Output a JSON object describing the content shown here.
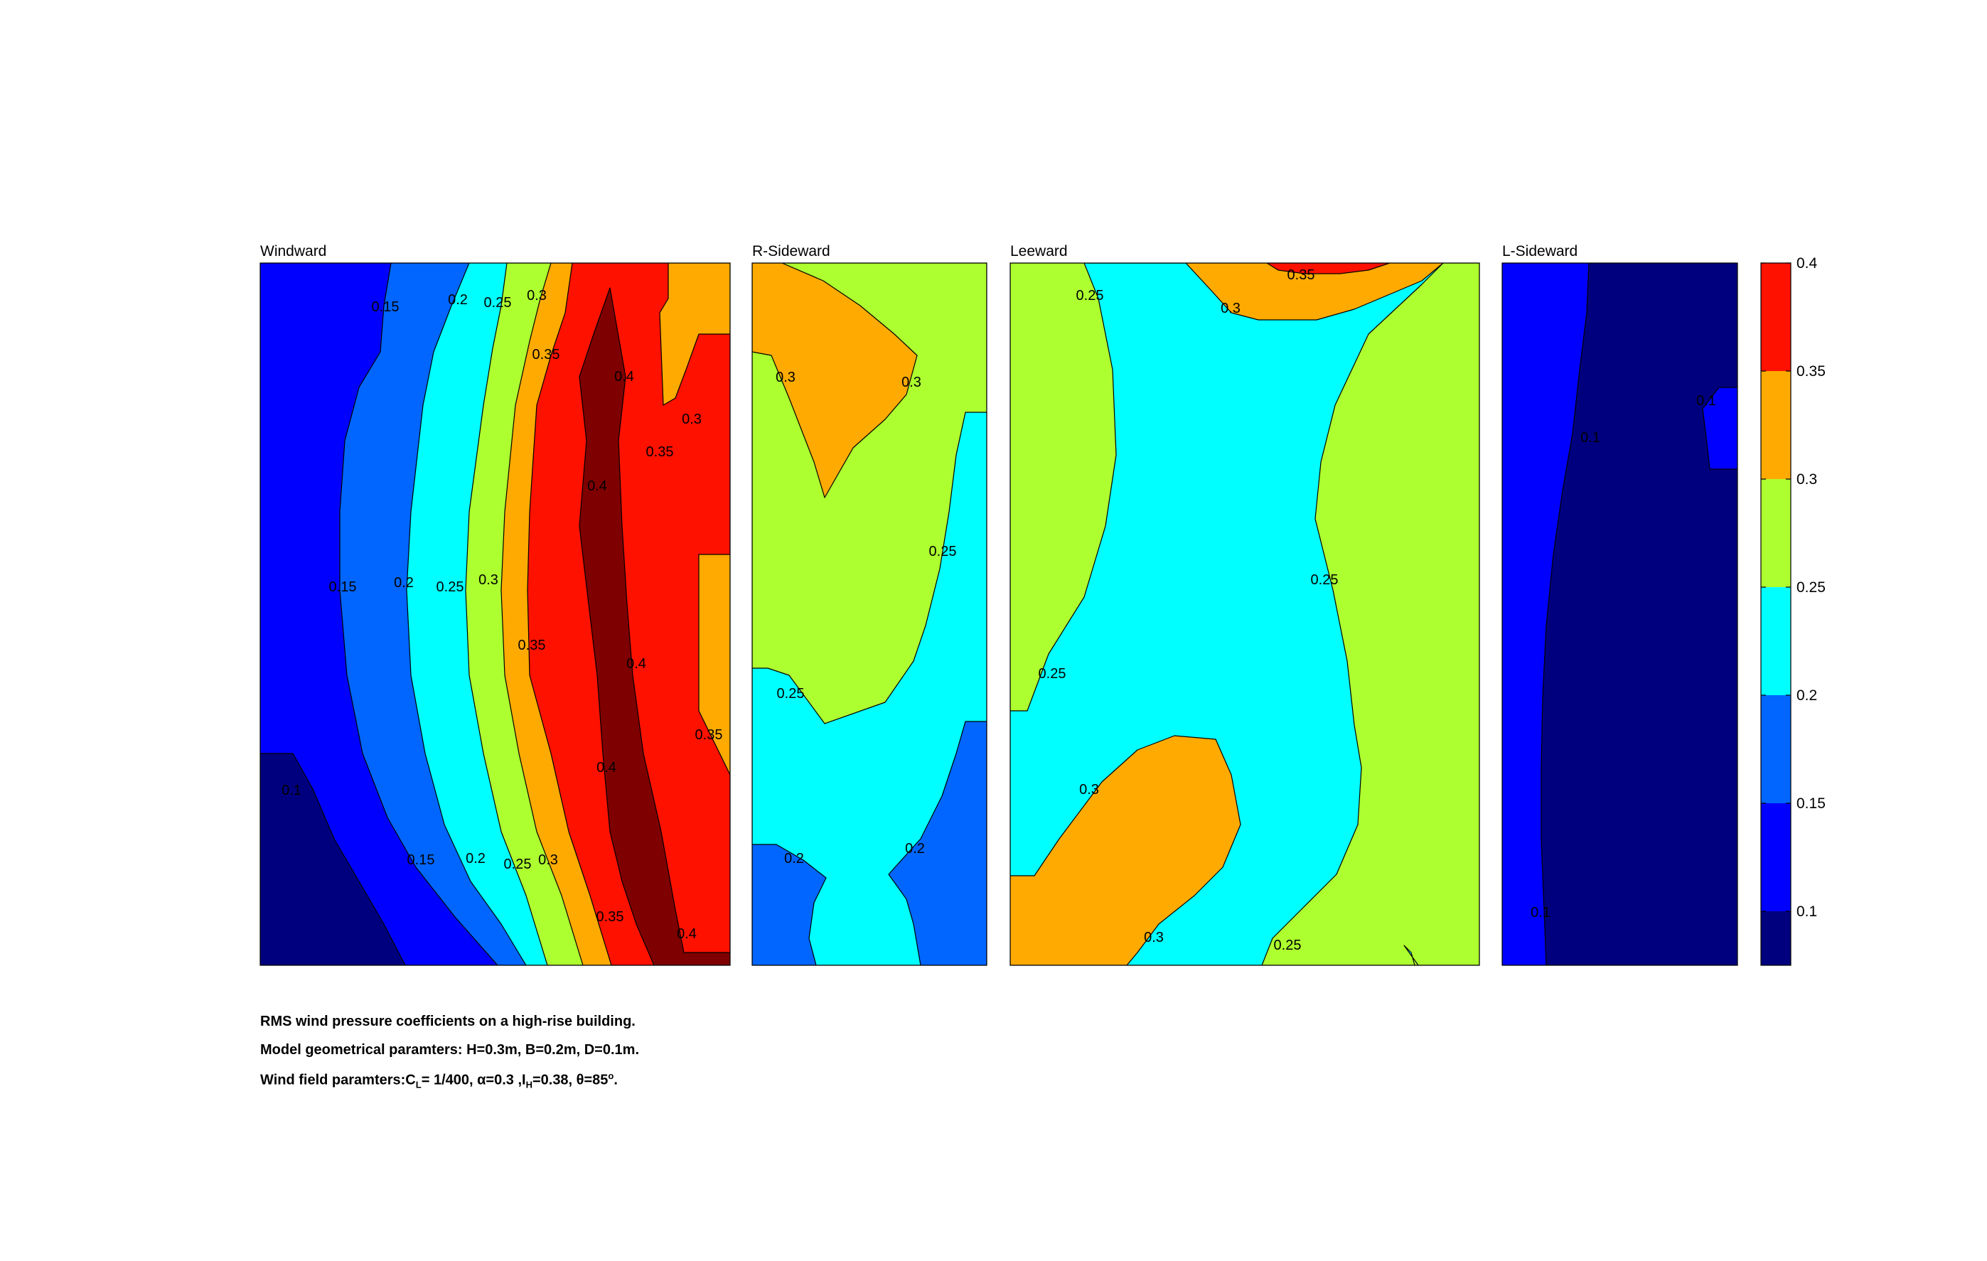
{
  "chart_data": {
    "type": "heatmap",
    "subtype": "filled-contour",
    "levels": [
      0.1,
      0.15,
      0.2,
      0.25,
      0.3,
      0.35,
      0.4
    ],
    "colormap": "jet",
    "band_colors": [
      "#00007f",
      "#0000ff",
      "#0066ff",
      "#00ffff",
      "#adff2f",
      "#ffaa00",
      "#ff1100",
      "#7f0000"
    ],
    "panels": [
      {
        "title": "Windward",
        "contour_labels": [
          "0.15",
          "0.2",
          "0.25",
          "0.3",
          "0.35",
          "0.4",
          "0.3",
          "0.35",
          "0.4",
          "0.15",
          "0.2",
          "0.25",
          "0.3",
          "0.35",
          "0.4",
          "0.35",
          "0.4",
          "0.1",
          "0.15",
          "0.2",
          "0.25",
          "0.3",
          "0.35",
          "0.4"
        ]
      },
      {
        "title": "R-Sideward",
        "contour_labels": [
          "0.3",
          "0.3",
          "0.25",
          "0.25",
          "0.2",
          "0.2"
        ]
      },
      {
        "title": "Leeward",
        "contour_labels": [
          "0.25",
          "0.3",
          "0.35",
          "0.25",
          "0.25",
          "0.3",
          "0.3",
          "0.25"
        ]
      },
      {
        "title": "L-Sideward",
        "contour_labels": [
          "0.1",
          "0.1",
          "0.1"
        ]
      }
    ],
    "colorbar": {
      "range": [
        0.075,
        0.4
      ],
      "ticks": [
        "0.1",
        "0.15",
        "0.2",
        "0.25",
        "0.3",
        "0.35",
        "0.4"
      ]
    }
  },
  "caption": {
    "line1": "RMS wind pressure coefficients on a high-rise building.",
    "line2": "Model geometrical paramters: H=0.3m, B=0.2m, D=0.1m.",
    "line3_prefix": "Wind field paramters:C",
    "line3_sub1": "L",
    "line3_mid1": "= 1/400, ",
    "line3_alpha": "α=0.3 ,I",
    "line3_sub2": "H",
    "line3_mid2": "=0.38, θ=85",
    "line3_sup": "o",
    "line3_end": "."
  }
}
